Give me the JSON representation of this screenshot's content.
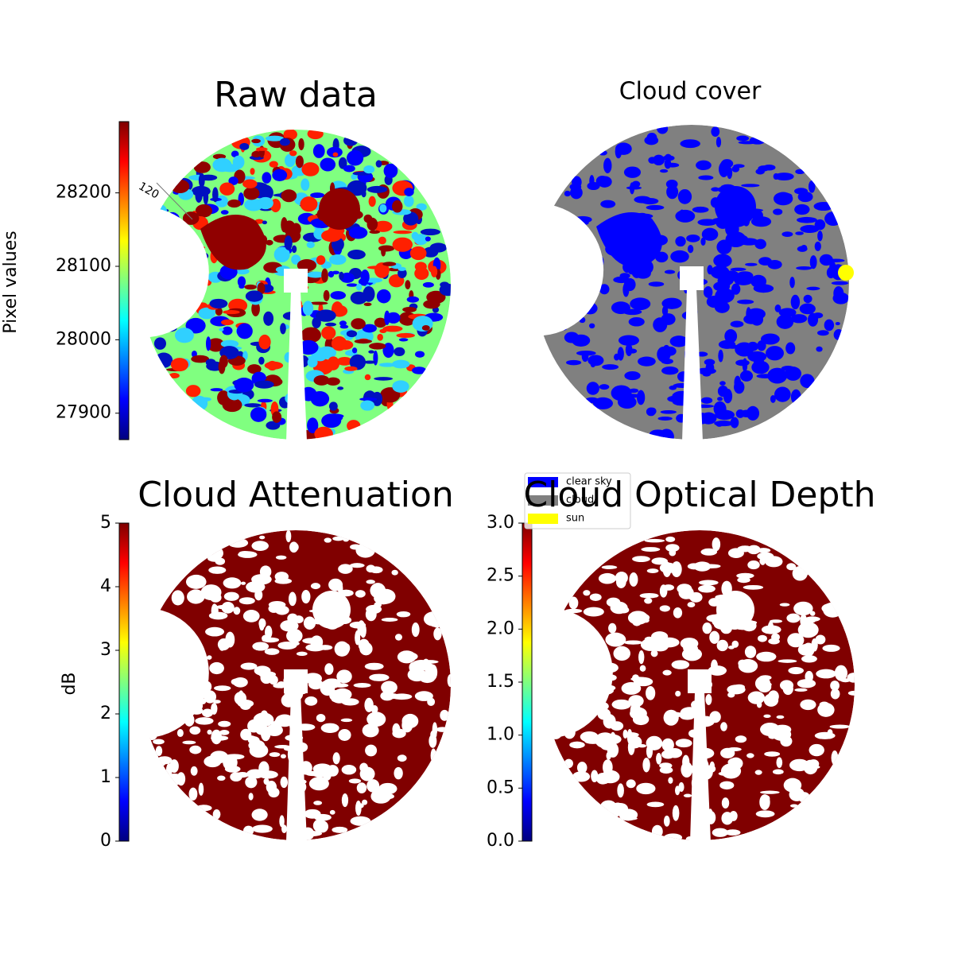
{
  "chart_data": [
    {
      "type": "image",
      "title": "Raw data",
      "colormap": "jet",
      "colorbar": {
        "label": "Pixel values",
        "lim": [
          27864,
          28297
        ],
        "ticks": [
          27900,
          28000,
          28100,
          28200
        ]
      },
      "annotations": [
        "120"
      ]
    },
    {
      "type": "image",
      "title": "Cloud cover",
      "legend": {
        "position": "lower left",
        "entries": [
          {
            "name": "clear sky",
            "color": "#0000ff"
          },
          {
            "name": "cloud",
            "color": "#808080"
          },
          {
            "name": "sun",
            "color": "#ffff00"
          }
        ]
      }
    },
    {
      "type": "image",
      "title": "Cloud Attenuation",
      "colormap": "jet",
      "colorbar": {
        "label": "dB",
        "lim": [
          0,
          5
        ],
        "ticks": [
          0,
          1,
          2,
          3,
          4,
          5
        ]
      }
    },
    {
      "type": "image",
      "title": "Cloud Optical Depth",
      "colormap": "jet",
      "colorbar": {
        "lim": [
          0,
          3
        ],
        "ticks": [
          {
            "value": 0,
            "label": "0.0"
          },
          {
            "value": 0.5,
            "label": "0.5"
          },
          {
            "value": 1,
            "label": "1.0"
          },
          {
            "value": 1.5,
            "label": "1.5"
          },
          {
            "value": 2,
            "label": "2.0"
          },
          {
            "value": 2.5,
            "label": "2.5"
          },
          {
            "value": 3,
            "label": "3.0"
          }
        ]
      }
    }
  ]
}
